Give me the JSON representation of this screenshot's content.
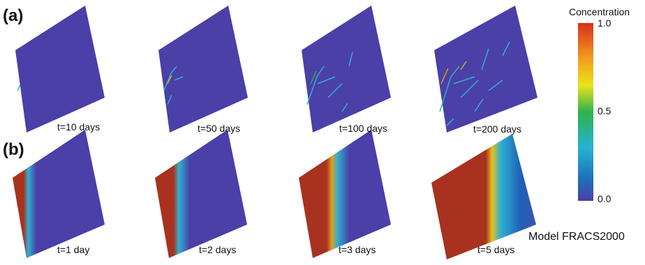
{
  "panel_a": {
    "label": "(a)",
    "captions": [
      "t=10 days",
      "t=50 days",
      "t=100 days",
      "t=200 days"
    ]
  },
  "panel_b": {
    "label": "(b)",
    "captions": [
      "t=1 day",
      "t=2 days",
      "t=3 days",
      "t=5 days"
    ]
  },
  "colorbar": {
    "title": "Concentration",
    "tick_labels": [
      "1.0",
      "0.5",
      "0.0"
    ]
  },
  "model_label": "Model FRACS2000"
}
